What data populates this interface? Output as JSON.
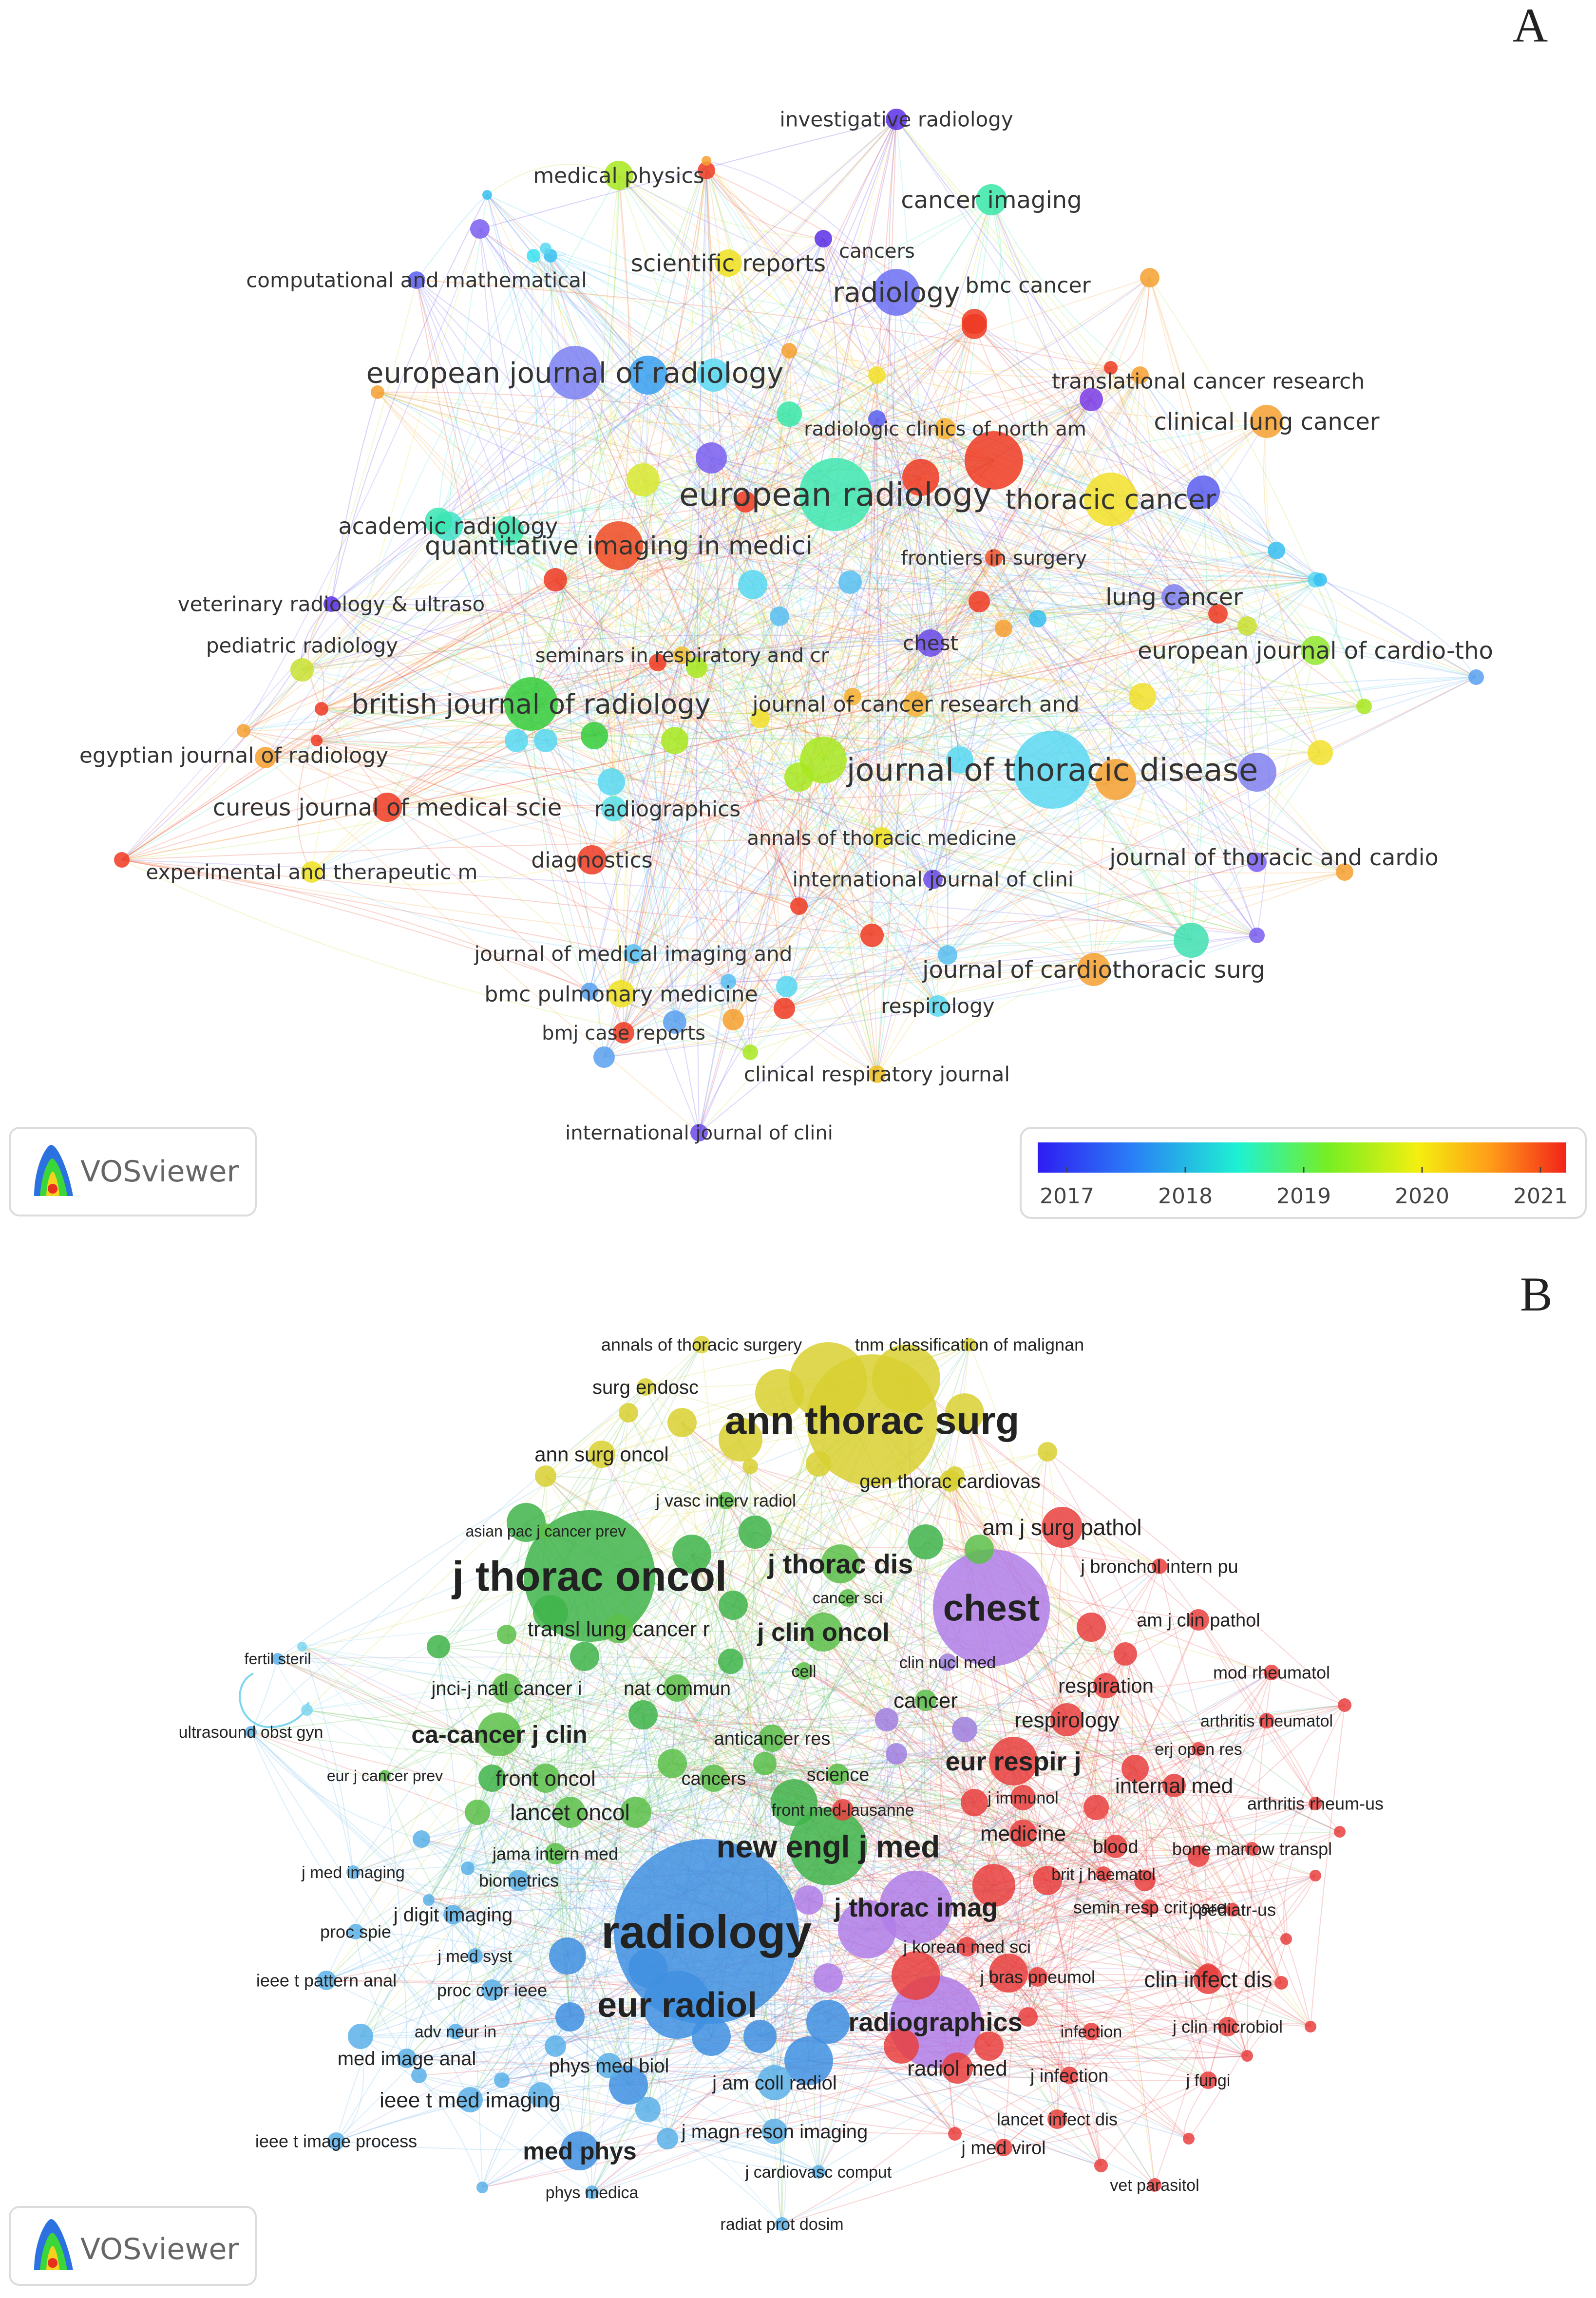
{
  "panel_a": {
    "letter": "A",
    "logo": "VOSviewer",
    "legend": {
      "ticks": [
        "2017",
        "2018",
        "2019",
        "2020",
        "2021"
      ],
      "colors": [
        "#2f1cf2",
        "#2a7ff6",
        "#1ef2d2",
        "#77ee22",
        "#f4ef10",
        "#ff9a18",
        "#f22318"
      ]
    },
    "nodes": [
      {
        "label": "investigative radiology",
        "color": "#5a2fe6"
      },
      {
        "label": "medical physics",
        "color": "#a8e81e"
      },
      {
        "label": "cancer imaging",
        "color": "#38e6a8"
      },
      {
        "label": "cancers",
        "color": "#5a2fe6"
      },
      {
        "label": "scientific reports",
        "color": "#eee020"
      },
      {
        "label": "computational and mathematical",
        "color": "#5a5ef0"
      },
      {
        "label": "radiology",
        "color": "#6b6ef2"
      },
      {
        "label": "bmc cancer",
        "color": "#ee3a22"
      },
      {
        "label": "european journal of radiology",
        "color": "#7b80f2"
      },
      {
        "label": "translational cancer research",
        "color": "#7a3be6"
      },
      {
        "label": "radiologic clinics of north am",
        "color": "#f8b030"
      },
      {
        "label": "clinical lung cancer",
        "color": "#f6a030"
      },
      {
        "label": "academic radiology",
        "color": "#40e2c8"
      },
      {
        "label": "european radiology",
        "color": "#3ee6b0"
      },
      {
        "label": "thoracic cancer",
        "color": "#f2e02a"
      },
      {
        "label": "quantitative imaging in medici",
        "color": "#ee4a22"
      },
      {
        "label": "frontiers in surgery",
        "color": "#f2502a"
      },
      {
        "label": "veterinary radiology & ultraso",
        "color": "#5a2fe6"
      },
      {
        "label": "lung cancer",
        "color": "#8080f0"
      },
      {
        "label": "pediatric radiology",
        "color": "#c8e030"
      },
      {
        "label": "chest",
        "color": "#6a4ae8"
      },
      {
        "label": "seminars in respiratory and cr",
        "color": "#f2c030"
      },
      {
        "label": "european journal of cardio-tho",
        "color": "#90e830"
      },
      {
        "label": "british journal of radiology",
        "color": "#34cc3a"
      },
      {
        "label": "journal of cancer research and",
        "color": "#f4b030"
      },
      {
        "label": "egyptian journal of radiology",
        "color": "#f6a030"
      },
      {
        "label": "journal of thoracic disease",
        "color": "#5cd8f2"
      },
      {
        "label": "cureus journal of medical scie",
        "color": "#ee3a22"
      },
      {
        "label": "radiographics",
        "color": "#58e0e8"
      },
      {
        "label": "annals of thoracic medicine",
        "color": "#eee020"
      },
      {
        "label": "experimental and therapeutic m",
        "color": "#eee020"
      },
      {
        "label": "diagnostics",
        "color": "#ee3a22"
      },
      {
        "label": "international journal of clini",
        "color": "#6a4ae8"
      },
      {
        "label": "journal of thoracic and cardio",
        "color": "#40e0b0"
      },
      {
        "label": "journal of medical imaging and",
        "color": "#58c0f2"
      },
      {
        "label": "journal of cardiothoracic surg",
        "color": "#f6a030"
      },
      {
        "label": "bmc pulmonary medicine",
        "color": "#eee020"
      },
      {
        "label": "respirology",
        "color": "#58d8f0"
      },
      {
        "label": "bmj case reports",
        "color": "#ee3a22"
      },
      {
        "label": "clinical respiratory journal",
        "color": "#eec020"
      },
      {
        "label": "international journal of clini",
        "color": "#6a4ae8"
      }
    ]
  },
  "panel_b": {
    "letter": "B",
    "logo": "VOSviewer",
    "nodes": [
      {
        "label": "annals of thoracic surgery",
        "color": "#d8d030"
      },
      {
        "label": "tnm classification of malignan",
        "color": "#d8d030"
      },
      {
        "label": "surg endosc",
        "color": "#d8d030"
      },
      {
        "label": "ann thorac surg",
        "color": "#d8d030"
      },
      {
        "label": "ann surg oncol",
        "color": "#d8d030"
      },
      {
        "label": "gen thorac cardiovas",
        "color": "#d8d030"
      },
      {
        "label": "j vasc interv radiol",
        "color": "#5cc04a"
      },
      {
        "label": "asian pac j cancer prev",
        "color": "#5cc04a"
      },
      {
        "label": "am j surg pathol",
        "color": "#e8403e"
      },
      {
        "label": "j thorac oncol",
        "color": "#3fb44a"
      },
      {
        "label": "j thorac dis",
        "color": "#5cc04a"
      },
      {
        "label": "j bronchol intern pu",
        "color": "#e8403e"
      },
      {
        "label": "cancer sci",
        "color": "#5cc04a"
      },
      {
        "label": "chest",
        "color": "#b07ee8"
      },
      {
        "label": "fertil steril",
        "color": "#5ab0e8"
      },
      {
        "label": "transl lung cancer r",
        "color": "#5cc04a"
      },
      {
        "label": "j clin oncol",
        "color": "#5cc04a"
      },
      {
        "label": "am j clin pathol",
        "color": "#e8403e"
      },
      {
        "label": "cell",
        "color": "#5cc04a"
      },
      {
        "label": "clin nucl med",
        "color": "#a080e0"
      },
      {
        "label": "mod rheumatol",
        "color": "#e8403e"
      },
      {
        "label": "jnci-j natl cancer i",
        "color": "#5cc04a"
      },
      {
        "label": "nat commun",
        "color": "#5cc04a"
      },
      {
        "label": "respiration",
        "color": "#e8403e"
      },
      {
        "label": "cancer",
        "color": "#5cc04a"
      },
      {
        "label": "ultrasound obst gyn",
        "color": "#5ab0e8"
      },
      {
        "label": "ca-cancer j clin",
        "color": "#5cc04a"
      },
      {
        "label": "respirology",
        "color": "#e8403e"
      },
      {
        "label": "arthritis rheumatol",
        "color": "#e8403e"
      },
      {
        "label": "anticancer res",
        "color": "#5cc04a"
      },
      {
        "label": "erj open res",
        "color": "#e8403e"
      },
      {
        "label": "eur respir j",
        "color": "#e8403e"
      },
      {
        "label": "eur j cancer prev",
        "color": "#5cc04a"
      },
      {
        "label": "front oncol",
        "color": "#5cc04a"
      },
      {
        "label": "cancers",
        "color": "#5cc04a"
      },
      {
        "label": "science",
        "color": "#5cc04a"
      },
      {
        "label": "j immunol",
        "color": "#e8403e"
      },
      {
        "label": "internal med",
        "color": "#e8403e"
      },
      {
        "label": "arthritis rheum-us",
        "color": "#e8403e"
      },
      {
        "label": "lancet oncol",
        "color": "#5cc04a"
      },
      {
        "label": "front med-lausanne",
        "color": "#e8403e"
      },
      {
        "label": "medicine",
        "color": "#e8403e"
      },
      {
        "label": "new engl j med",
        "color": "#3fb44a"
      },
      {
        "label": "jama intern med",
        "color": "#5cc04a"
      },
      {
        "label": "blood",
        "color": "#e8403e"
      },
      {
        "label": "bone marrow transpl",
        "color": "#e8403e"
      },
      {
        "label": "j med imaging",
        "color": "#5ab0e8"
      },
      {
        "label": "biometrics",
        "color": "#5ab0e8"
      },
      {
        "label": "brit j haematol",
        "color": "#e8403e"
      },
      {
        "label": "j digit imaging",
        "color": "#5ab0e8"
      },
      {
        "label": "j thorac imag",
        "color": "#b07ee8"
      },
      {
        "label": "semin resp crit care",
        "color": "#e8403e"
      },
      {
        "label": "j pediatr-us",
        "color": "#e8403e"
      },
      {
        "label": "radiology",
        "color": "#3f8fe0"
      },
      {
        "label": "proc spie",
        "color": "#5ab0e8"
      },
      {
        "label": "j korean med sci",
        "color": "#e8403e"
      },
      {
        "label": "j med syst",
        "color": "#5ab0e8"
      },
      {
        "label": "ieee t pattern anal",
        "color": "#5ab0e8"
      },
      {
        "label": "proc cvpr ieee",
        "color": "#5ab0e8"
      },
      {
        "label": "j bras pneumol",
        "color": "#e8403e"
      },
      {
        "label": "clin infect dis",
        "color": "#e8403e"
      },
      {
        "label": "eur radiol",
        "color": "#3f8fe0"
      },
      {
        "label": "radiographics",
        "color": "#b07ee8"
      },
      {
        "label": "adv neur in",
        "color": "#5ab0e8"
      },
      {
        "label": "infection",
        "color": "#e8403e"
      },
      {
        "label": "j clin microbiol",
        "color": "#e8403e"
      },
      {
        "label": "med image anal",
        "color": "#5ab0e8"
      },
      {
        "label": "phys med biol",
        "color": "#5ab0e8"
      },
      {
        "label": "radiol med",
        "color": "#e8403e"
      },
      {
        "label": "j infection",
        "color": "#e8403e"
      },
      {
        "label": "j fungi",
        "color": "#e8403e"
      },
      {
        "label": "ieee t med imaging",
        "color": "#5ab0e8"
      },
      {
        "label": "j am coll radiol",
        "color": "#5ab0e8"
      },
      {
        "label": "lancet infect dis",
        "color": "#e8403e"
      },
      {
        "label": "ieee t image process",
        "color": "#5ab0e8"
      },
      {
        "label": "med phys",
        "color": "#3f8fe0"
      },
      {
        "label": "j magn reson imaging",
        "color": "#5ab0e8"
      },
      {
        "label": "j med virol",
        "color": "#e8403e"
      },
      {
        "label": "j cardiovasc comput",
        "color": "#5ab0e8"
      },
      {
        "label": "vet parasitol",
        "color": "#e8403e"
      },
      {
        "label": "phys medica",
        "color": "#5ab0e8"
      },
      {
        "label": "radiat prot dosim",
        "color": "#5ab0e8"
      }
    ]
  }
}
